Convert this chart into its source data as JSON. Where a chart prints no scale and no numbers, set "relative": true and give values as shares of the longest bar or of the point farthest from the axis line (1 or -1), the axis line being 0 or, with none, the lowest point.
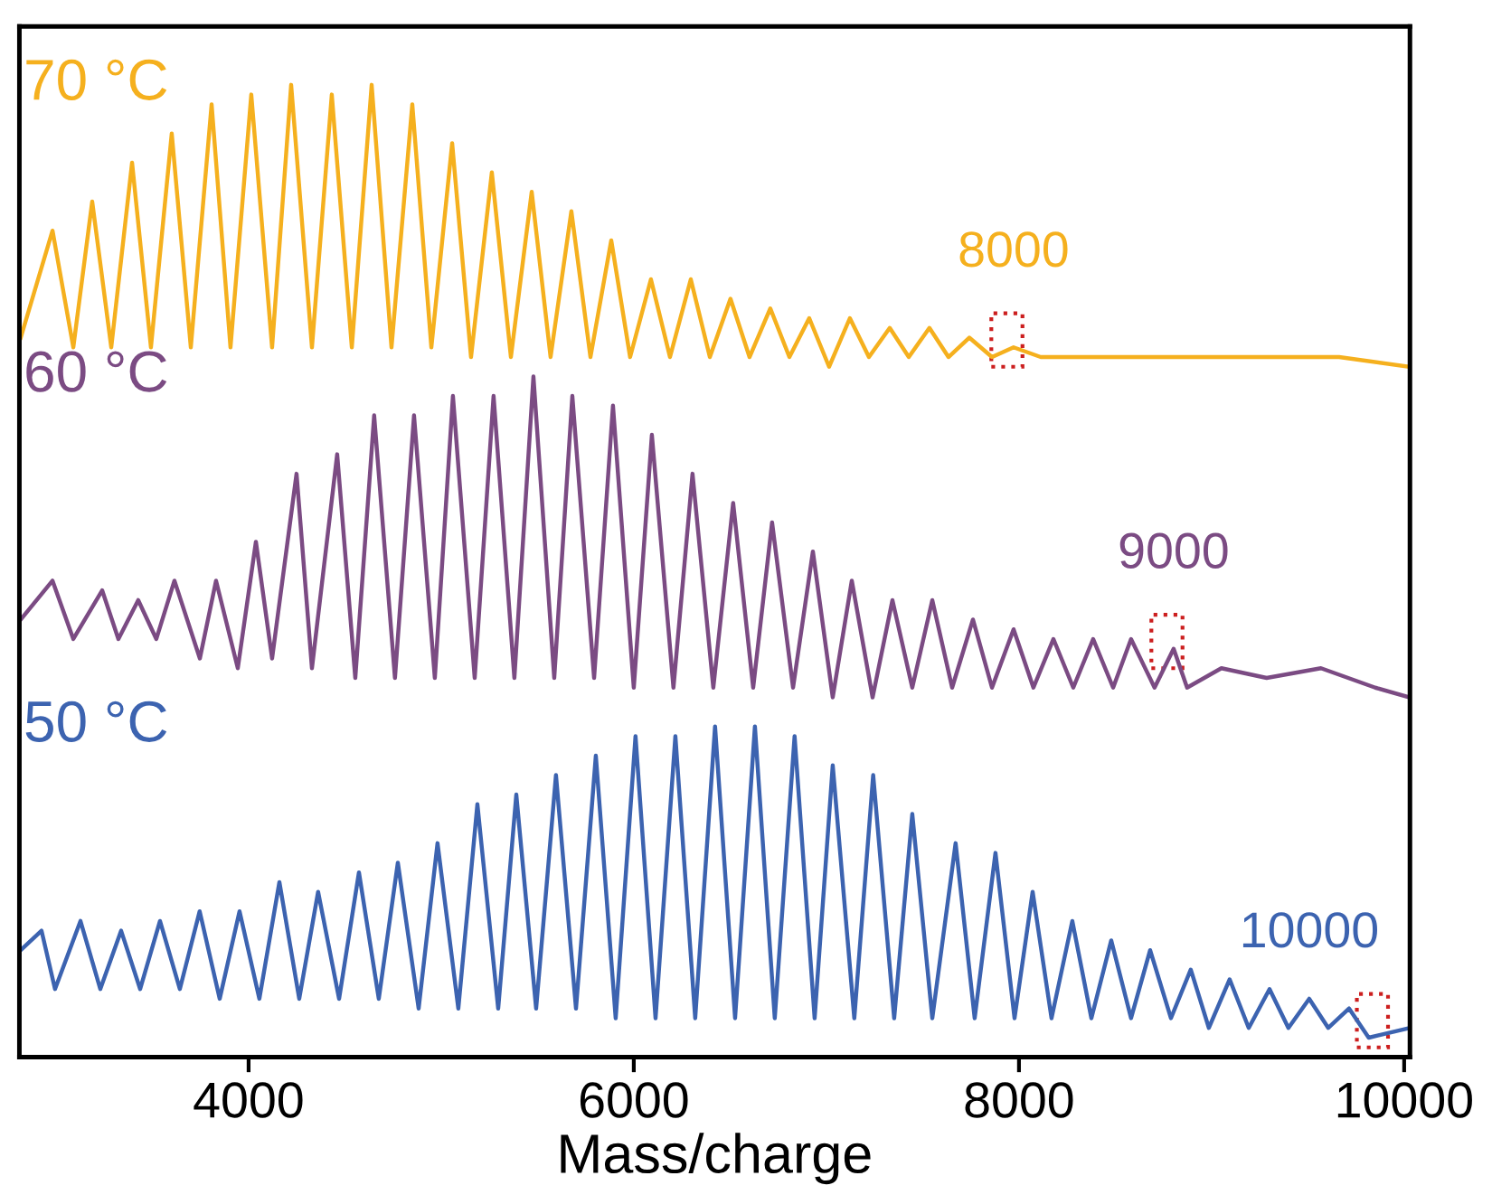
{
  "chart_data": {
    "type": "line",
    "relative": true,
    "xlabel": "Mass/charge",
    "xlim": [
      2810,
      10030
    ],
    "xticks": [
      4000,
      6000,
      8000,
      10000
    ],
    "tick_labels": "x",
    "grid": false,
    "series": [
      {
        "name": "70 °C",
        "color": "#f5b01e",
        "x": [
          2817,
          2982,
          3090,
          3188,
          3287,
          3395,
          3493,
          3601,
          3700,
          3808,
          3906,
          4014,
          4122,
          4221,
          4329,
          4432,
          4536,
          4639,
          4742,
          4850,
          4949,
          5057,
          5155,
          5263,
          5362,
          5470,
          5568,
          5676,
          5775,
          5883,
          5981,
          6089,
          6188,
          6296,
          6395,
          6502,
          6601,
          6709,
          6808,
          6911,
          7014,
          7122,
          7221,
          7329,
          7428,
          7535,
          7634,
          7742,
          7860,
          7972,
          8113,
          8582,
          9286,
          9662,
          10028
        ],
        "values": [
          0.74,
          0.85,
          0.73,
          0.88,
          0.73,
          0.92,
          0.73,
          0.95,
          0.73,
          0.98,
          0.73,
          0.99,
          0.73,
          1.0,
          0.73,
          0.99,
          0.73,
          1.0,
          0.73,
          0.98,
          0.73,
          0.94,
          0.72,
          0.91,
          0.72,
          0.89,
          0.72,
          0.87,
          0.72,
          0.84,
          0.72,
          0.8,
          0.72,
          0.8,
          0.72,
          0.78,
          0.72,
          0.77,
          0.72,
          0.76,
          0.71,
          0.76,
          0.72,
          0.75,
          0.72,
          0.75,
          0.72,
          0.74,
          0.72,
          0.73,
          0.72,
          0.72,
          0.72,
          0.72,
          0.71
        ]
      },
      {
        "name": "60 °C",
        "color": "#7b4b83",
        "x": [
          2817,
          2982,
          3090,
          3240,
          3324,
          3427,
          3521,
          3615,
          3747,
          3831,
          3944,
          4038,
          4122,
          4249,
          4329,
          4460,
          4554,
          4652,
          4760,
          4859,
          4967,
          5061,
          5174,
          5272,
          5380,
          5479,
          5587,
          5681,
          5794,
          5892,
          6000,
          6094,
          6206,
          6305,
          6413,
          6516,
          6620,
          6718,
          6827,
          6930,
          7033,
          7132,
          7240,
          7343,
          7446,
          7550,
          7653,
          7761,
          7860,
          7972,
          8075,
          8179,
          8282,
          8385,
          8489,
          8582,
          8704,
          8803,
          8873,
          9051,
          9286,
          9568,
          9850,
          10028
        ],
        "values": [
          0.45,
          0.49,
          0.43,
          0.48,
          0.43,
          0.47,
          0.43,
          0.49,
          0.41,
          0.49,
          0.4,
          0.53,
          0.41,
          0.6,
          0.4,
          0.62,
          0.39,
          0.66,
          0.39,
          0.66,
          0.39,
          0.68,
          0.39,
          0.68,
          0.39,
          0.7,
          0.39,
          0.68,
          0.39,
          0.67,
          0.38,
          0.64,
          0.38,
          0.6,
          0.38,
          0.57,
          0.38,
          0.55,
          0.38,
          0.52,
          0.37,
          0.49,
          0.37,
          0.47,
          0.38,
          0.47,
          0.38,
          0.45,
          0.38,
          0.44,
          0.38,
          0.43,
          0.38,
          0.43,
          0.38,
          0.43,
          0.38,
          0.42,
          0.38,
          0.4,
          0.39,
          0.4,
          0.38,
          0.37
        ]
      },
      {
        "name": "50 °C",
        "color": "#3c63b0",
        "x": [
          2817,
          2925,
          2995,
          3127,
          3230,
          3338,
          3437,
          3540,
          3643,
          3746,
          3850,
          3953,
          4056,
          4160,
          4263,
          4361,
          4470,
          4573,
          4676,
          4775,
          4883,
          4981,
          5089,
          5188,
          5296,
          5390,
          5493,
          5596,
          5700,
          5803,
          5906,
          6009,
          6113,
          6216,
          6319,
          6422,
          6526,
          6629,
          6732,
          6835,
          6939,
          7033,
          7145,
          7243,
          7352,
          7446,
          7550,
          7671,
          7770,
          7878,
          7977,
          8071,
          8169,
          8277,
          8376,
          8479,
          8582,
          8681,
          8789,
          8892,
          8986,
          9094,
          9193,
          9301,
          9399,
          9507,
          9606,
          9714,
          9816,
          10028
        ],
        "values": [
          0.11,
          0.13,
          0.07,
          0.14,
          0.07,
          0.13,
          0.07,
          0.14,
          0.07,
          0.15,
          0.06,
          0.15,
          0.06,
          0.18,
          0.06,
          0.17,
          0.06,
          0.19,
          0.06,
          0.2,
          0.05,
          0.22,
          0.05,
          0.26,
          0.05,
          0.27,
          0.05,
          0.29,
          0.05,
          0.31,
          0.04,
          0.33,
          0.04,
          0.33,
          0.04,
          0.34,
          0.04,
          0.34,
          0.04,
          0.33,
          0.04,
          0.3,
          0.04,
          0.29,
          0.04,
          0.25,
          0.04,
          0.22,
          0.04,
          0.21,
          0.04,
          0.17,
          0.04,
          0.14,
          0.04,
          0.12,
          0.04,
          0.11,
          0.04,
          0.09,
          0.03,
          0.08,
          0.03,
          0.07,
          0.03,
          0.06,
          0.03,
          0.05,
          0.02,
          0.03
        ]
      }
    ],
    "annotations": [
      {
        "text": "8000",
        "x": 7972,
        "y": 0.73
      },
      {
        "text": "9000",
        "x": 8803,
        "y": 0.42
      },
      {
        "text": "10000",
        "x": 9870,
        "y": 0.03
      }
    ]
  }
}
